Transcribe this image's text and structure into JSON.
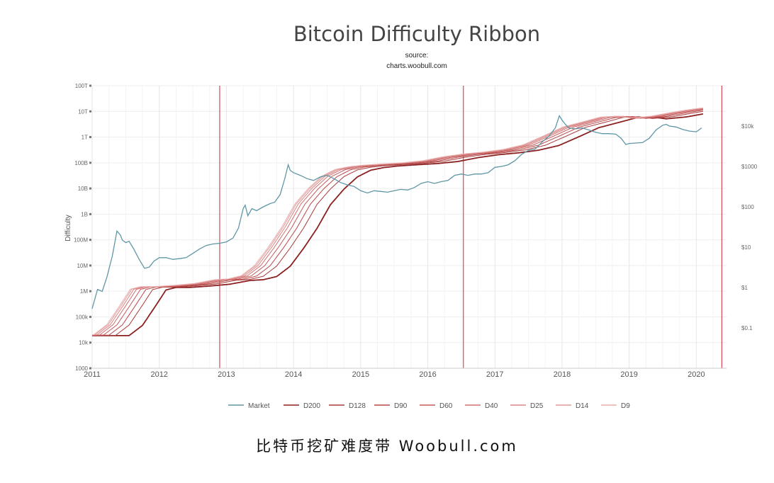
{
  "caption": "比特币挖矿难度带  Woobull.com",
  "chart_data": {
    "type": "line",
    "title": "Bitcoin Difficulty Ribbon",
    "subtitle_lines": [
      "source:",
      "charts.woobull.com"
    ],
    "ylabel": "Difficulty",
    "y_scale": "log",
    "ylim": [
      1000,
      100000000000000
    ],
    "y_ticks": [
      {
        "label": "100T",
        "value": 100000000000000
      },
      {
        "label": "10T",
        "value": 10000000000000
      },
      {
        "label": "1T",
        "value": 1000000000000
      },
      {
        "label": "100B",
        "value": 100000000000
      },
      {
        "label": "10B",
        "value": 10000000000
      },
      {
        "label": "1B",
        "value": 1000000000
      },
      {
        "label": "100M",
        "value": 100000000
      },
      {
        "label": "10M",
        "value": 10000000
      },
      {
        "label": "1M",
        "value": 1000000
      },
      {
        "label": "100k",
        "value": 100000
      },
      {
        "label": "10k",
        "value": 10000
      },
      {
        "label": "1000",
        "value": 1000
      }
    ],
    "y2_scale": "log",
    "y2lim": [
      0.01,
      100000
    ],
    "y2_ticks": [
      {
        "label": "$10k",
        "value": 10000
      },
      {
        "label": "$1000",
        "value": 1000
      },
      {
        "label": "$100",
        "value": 100
      },
      {
        "label": "$10",
        "value": 10
      },
      {
        "label": "$1",
        "value": 1
      },
      {
        "label": "$0.1",
        "value": 0.1
      }
    ],
    "xlim": [
      2011.0,
      2020.45
    ],
    "x_ticks": [
      "2011",
      "2012",
      "2013",
      "2014",
      "2015",
      "2016",
      "2017",
      "2018",
      "2019",
      "2020"
    ],
    "halving_lines": [
      2012.9,
      2016.53,
      2020.38
    ],
    "legend": [
      "Market",
      "D200",
      "D128",
      "D90",
      "D60",
      "D40",
      "D25",
      "D14",
      "D9"
    ],
    "legend_position": "bottom",
    "colors": {
      "market": "#5f97a6",
      "ribbon": "#c45a5a",
      "ribbon_dark": "#8b2020",
      "halving": "#d9475a"
    },
    "market": {
      "x": [
        2011.0,
        2011.08,
        2011.15,
        2011.22,
        2011.3,
        2011.37,
        2011.42,
        2011.45,
        2011.5,
        2011.55,
        2011.62,
        2011.7,
        2011.78,
        2011.85,
        2011.92,
        2012.0,
        2012.1,
        2012.2,
        2012.3,
        2012.4,
        2012.5,
        2012.6,
        2012.7,
        2012.8,
        2012.9,
        2013.0,
        2013.1,
        2013.18,
        2013.25,
        2013.28,
        2013.32,
        2013.38,
        2013.45,
        2013.55,
        2013.65,
        2013.72,
        2013.8,
        2013.87,
        2013.92,
        2013.95,
        2014.0,
        2014.1,
        2014.2,
        2014.3,
        2014.4,
        2014.5,
        2014.6,
        2014.7,
        2014.8,
        2014.9,
        2015.0,
        2015.1,
        2015.2,
        2015.3,
        2015.4,
        2015.5,
        2015.6,
        2015.7,
        2015.8,
        2015.9,
        2016.0,
        2016.1,
        2016.2,
        2016.3,
        2016.4,
        2016.5,
        2016.6,
        2016.7,
        2016.8,
        2016.9,
        2017.0,
        2017.1,
        2017.2,
        2017.3,
        2017.4,
        2017.5,
        2017.6,
        2017.7,
        2017.8,
        2017.9,
        2017.96,
        2018.0,
        2018.05,
        2018.1,
        2018.2,
        2018.3,
        2018.4,
        2018.5,
        2018.6,
        2018.7,
        2018.8,
        2018.88,
        2018.95,
        2019.0,
        2019.1,
        2019.2,
        2019.3,
        2019.4,
        2019.5,
        2019.55,
        2019.6,
        2019.7,
        2019.8,
        2019.9,
        2020.0,
        2020.08
      ],
      "y": [
        0.3,
        0.9,
        0.8,
        1.8,
        6,
        25,
        20,
        15,
        13,
        14,
        9,
        5,
        3,
        3.2,
        4.5,
        5.5,
        5.5,
        5,
        5.2,
        5.5,
        7,
        9,
        11,
        12,
        12.5,
        13.5,
        17,
        30,
        90,
        110,
        60,
        90,
        80,
        100,
        120,
        130,
        200,
        500,
        1100,
        800,
        700,
        600,
        500,
        450,
        550,
        600,
        500,
        400,
        350,
        320,
        250,
        220,
        250,
        240,
        230,
        250,
        270,
        260,
        300,
        380,
        420,
        380,
        420,
        450,
        600,
        650,
        600,
        650,
        650,
        700,
        950,
        1000,
        1100,
        1400,
        2000,
        2500,
        2700,
        4000,
        5500,
        9000,
        18000,
        14000,
        11000,
        9000,
        8500,
        9000,
        8000,
        7000,
        6500,
        6500,
        6300,
        5000,
        3500,
        3700,
        3800,
        3900,
        5000,
        8000,
        10500,
        11000,
        10000,
        9500,
        8200,
        7500,
        7200,
        9000
      ],
      "unit": "USD (right axis)"
    },
    "ribbon_d9": {
      "x": [
        2011.0,
        2011.2,
        2011.4,
        2011.55,
        2011.7,
        2011.9,
        2012.2,
        2012.5,
        2012.8,
        2013.0,
        2013.2,
        2013.4,
        2013.6,
        2013.8,
        2014.0,
        2014.2,
        2014.4,
        2014.6,
        2014.8,
        2015.0,
        2015.3,
        2015.6,
        2015.9,
        2016.2,
        2016.5,
        2016.8,
        2017.1,
        2017.4,
        2017.7,
        2018.0,
        2018.3,
        2018.55,
        2018.8,
        2019.0,
        2019.3,
        2019.6,
        2019.8,
        2020.0,
        2020.1
      ],
      "y": [
        20000,
        50000,
        300000,
        1200000,
        1500000,
        1500000,
        1700000,
        2000000,
        2800000,
        3000000,
        4000000,
        10000000,
        50000000,
        300000000,
        2500000000,
        10000000000,
        30000000000,
        55000000000,
        70000000000,
        80000000000,
        90000000000,
        100000000000,
        120000000000,
        170000000000,
        220000000000,
        260000000000,
        330000000000,
        500000000000,
        1100000000000,
        2500000000000,
        4000000000000,
        6000000000000,
        6500000000000,
        5500000000000,
        6500000000000,
        9000000000000,
        11000000000000,
        13000000000000,
        14000000000000
      ]
    }
  }
}
